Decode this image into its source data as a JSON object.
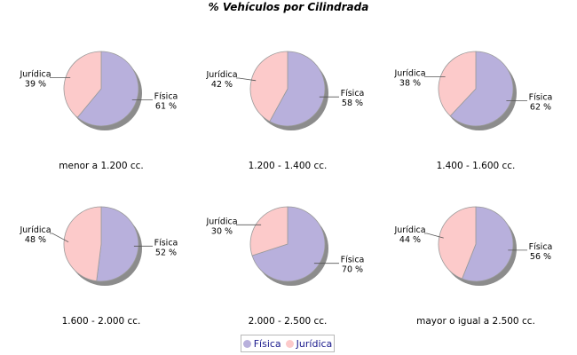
{
  "chart_data": {
    "type": "pie",
    "title": "% Vehículos por Cilindrada",
    "legend": {
      "position": "bottom",
      "items": [
        {
          "label": "Física",
          "color": "#b8b0dc"
        },
        {
          "label": "Jurídica",
          "color": "#fccaca"
        }
      ]
    },
    "series_colors": {
      "Física": "#b8b0dc",
      "Jurídica": "#fccaca"
    },
    "pies": [
      {
        "category": "menor a 1.200 cc.",
        "slices": [
          {
            "label": "Física",
            "value": 61,
            "text": "61 %"
          },
          {
            "label": "Jurídica",
            "value": 39,
            "text": "39 %"
          }
        ]
      },
      {
        "category": "1.200 - 1.400 cc.",
        "slices": [
          {
            "label": "Física",
            "value": 58,
            "text": "58 %"
          },
          {
            "label": "Jurídica",
            "value": 42,
            "text": "42 %"
          }
        ]
      },
      {
        "category": "1.400 - 1.600 cc.",
        "slices": [
          {
            "label": "Física",
            "value": 62,
            "text": "62 %"
          },
          {
            "label": "Jurídica",
            "value": 38,
            "text": "38 %"
          }
        ]
      },
      {
        "category": "1.600 - 2.000 cc.",
        "slices": [
          {
            "label": "Física",
            "value": 52,
            "text": "52 %"
          },
          {
            "label": "Jurídica",
            "value": 48,
            "text": "48 %"
          }
        ]
      },
      {
        "category": "2.000 - 2.500 cc.",
        "slices": [
          {
            "label": "Física",
            "value": 70,
            "text": "70 %"
          },
          {
            "label": "Jurídica",
            "value": 30,
            "text": "30 %"
          }
        ]
      },
      {
        "category": "mayor o igual a 2.500 cc.",
        "slices": [
          {
            "label": "Física",
            "value": 56,
            "text": "56 %"
          },
          {
            "label": "Jurídica",
            "value": 44,
            "text": "44 %"
          }
        ]
      }
    ]
  }
}
